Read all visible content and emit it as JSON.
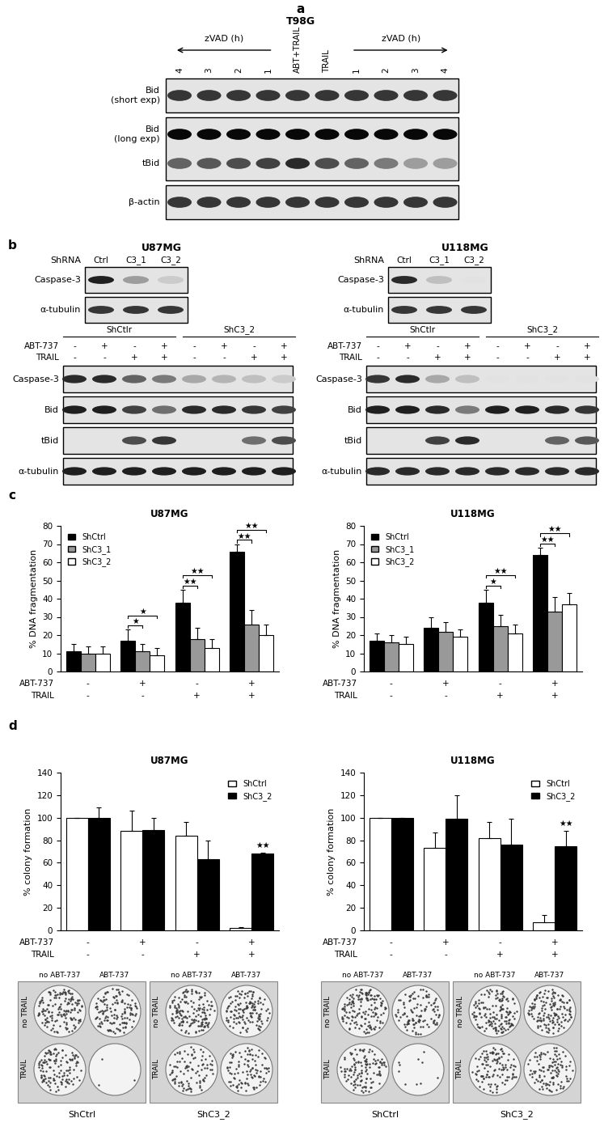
{
  "panel_letters": [
    "a",
    "b",
    "c",
    "d"
  ],
  "blots": {
    "a": {
      "title": "T98G",
      "lanes": [
        "4",
        "3",
        "2",
        "1",
        "ABT+TRAIL",
        "TRAIL",
        "1",
        "2",
        "3",
        "4"
      ],
      "lane_arrows": [
        {
          "label": "zVAD (h)",
          "span": [
            0,
            3
          ],
          "direction": "left"
        },
        {
          "label": "zVAD (h)",
          "span": [
            6,
            9
          ],
          "direction": "right"
        }
      ],
      "boxes": [
        {
          "bands": [
            {
              "label": "Bid\n(short exp)",
              "intensity": [
                0.8,
                0.8,
                0.8,
                0.8,
                0.8,
                0.8,
                0.8,
                0.8,
                0.8,
                0.8
              ]
            }
          ]
        },
        {
          "bands": [
            {
              "label": "Bid\n(long exp)",
              "intensity": [
                1.0,
                1.0,
                1.0,
                1.0,
                1.0,
                1.0,
                1.0,
                1.0,
                1.0,
                1.0
              ]
            },
            {
              "label": "tBid",
              "intensity": [
                0.6,
                0.65,
                0.7,
                0.75,
                0.85,
                0.7,
                0.6,
                0.5,
                0.35,
                0.35
              ]
            }
          ]
        },
        {
          "bands": [
            {
              "label": "β-actin",
              "intensity": [
                0.8,
                0.8,
                0.8,
                0.8,
                0.8,
                0.8,
                0.8,
                0.8,
                0.8,
                0.8
              ]
            }
          ]
        }
      ]
    },
    "b": [
      {
        "title": "U87MG",
        "knockdown": {
          "header": "ShRNA",
          "lanes": [
            "Ctrl",
            "C3_1",
            "C3_2"
          ],
          "boxes": [
            {
              "bands": [
                {
                  "label": "Caspase-3",
                  "intensity": [
                    0.9,
                    0.35,
                    0.15
                  ]
                }
              ]
            },
            {
              "bands": [
                {
                  "label": "α-tubulin",
                  "intensity": [
                    0.8,
                    0.8,
                    0.8
                  ]
                }
              ]
            }
          ]
        },
        "treatment": {
          "groups": [
            {
              "label": "ShCtlr",
              "span": [
                0,
                3
              ]
            },
            {
              "label": "ShC3_2",
              "span": [
                4,
                7
              ]
            }
          ],
          "conditions": [
            {
              "label": "ABT-737",
              "values": [
                "-",
                "+",
                "-",
                "+",
                "-",
                "+",
                "-",
                "+"
              ]
            },
            {
              "label": "TRAIL",
              "values": [
                "-",
                "-",
                "+",
                "+",
                "-",
                "-",
                "+",
                "+"
              ]
            }
          ],
          "boxes": [
            {
              "bands": [
                {
                  "label": "Caspase-3",
                  "intensity": [
                    0.85,
                    0.85,
                    0.6,
                    0.5,
                    0.3,
                    0.25,
                    0.2,
                    0.15
                  ]
                }
              ]
            },
            {
              "bands": [
                {
                  "label": "Bid",
                  "intensity": [
                    0.9,
                    0.9,
                    0.75,
                    0.55,
                    0.85,
                    0.85,
                    0.8,
                    0.75
                  ]
                }
              ]
            },
            {
              "bands": [
                {
                  "label": "tBid",
                  "intensity": [
                    0,
                    0,
                    0.7,
                    0.8,
                    0,
                    0,
                    0.55,
                    0.7
                  ]
                }
              ]
            },
            {
              "bands": [
                {
                  "label": "α-tubulin",
                  "intensity": [
                    0.9,
                    0.9,
                    0.9,
                    0.9,
                    0.9,
                    0.9,
                    0.9,
                    0.9
                  ]
                }
              ]
            }
          ]
        }
      },
      {
        "title": "U118MG",
        "knockdown": {
          "header": "ShRNA",
          "lanes": [
            "Ctrl",
            "C3_1",
            "C3_2"
          ],
          "boxes": [
            {
              "bands": [
                {
                  "label": "Caspase-3",
                  "intensity": [
                    0.85,
                    0.2,
                    0.05
                  ]
                }
              ]
            },
            {
              "bands": [
                {
                  "label": "α-tubulin",
                  "intensity": [
                    0.8,
                    0.8,
                    0.8
                  ]
                }
              ]
            }
          ]
        },
        "treatment": {
          "groups": [
            {
              "label": "ShCtlr",
              "span": [
                0,
                3
              ]
            },
            {
              "label": "ShC3_2",
              "span": [
                4,
                7
              ]
            }
          ],
          "conditions": [
            {
              "label": "ABT-737",
              "values": [
                "-",
                "+",
                "-",
                "+",
                "-",
                "+",
                "-",
                "+"
              ]
            },
            {
              "label": "TRAIL",
              "values": [
                "-",
                "-",
                "+",
                "+",
                "-",
                "-",
                "+",
                "+"
              ]
            }
          ],
          "boxes": [
            {
              "bands": [
                {
                  "label": "Caspase-3",
                  "intensity": [
                    0.8,
                    0.85,
                    0.3,
                    0.2,
                    0.05,
                    0.05,
                    0.05,
                    0.05
                  ]
                }
              ]
            },
            {
              "bands": [
                {
                  "label": "Bid",
                  "intensity": [
                    0.9,
                    0.9,
                    0.85,
                    0.5,
                    0.9,
                    0.9,
                    0.85,
                    0.8
                  ]
                }
              ]
            },
            {
              "bands": [
                {
                  "label": "tBid",
                  "intensity": [
                    0,
                    0,
                    0.75,
                    0.85,
                    0,
                    0,
                    0.6,
                    0.65
                  ]
                }
              ]
            },
            {
              "bands": [
                {
                  "label": "α-tubulin",
                  "intensity": [
                    0.85,
                    0.85,
                    0.85,
                    0.85,
                    0.85,
                    0.85,
                    0.85,
                    0.85
                  ]
                }
              ]
            }
          ]
        }
      }
    ]
  },
  "chart_data": [
    {
      "type": "bar",
      "title": "U87MG",
      "y_label": "% DNA fragmentation",
      "categories": [
        null,
        null,
        null,
        null
      ],
      "conditions": [
        {
          "label": "ABT-737",
          "values": [
            "-",
            "+",
            "-",
            "+"
          ]
        },
        {
          "label": "TRAIL",
          "values": [
            "-",
            "-",
            "+",
            "+"
          ]
        }
      ],
      "series": [
        {
          "name": "ShCtrl",
          "color": "#000000",
          "values": [
            11,
            17,
            38,
            66
          ],
          "errors": [
            4,
            6,
            7,
            4
          ]
        },
        {
          "name": "ShC3_1",
          "color": "#999999",
          "values": [
            10,
            11,
            18,
            26
          ],
          "errors": [
            4,
            4,
            6,
            8
          ]
        },
        {
          "name": "ShC3_2",
          "color": "#ffffff",
          "values": [
            10,
            9,
            13,
            20
          ],
          "errors": [
            4,
            4,
            5,
            6
          ]
        }
      ],
      "ylim": [
        0,
        80
      ],
      "yticks": [
        0,
        10,
        20,
        30,
        40,
        50,
        60,
        70,
        80
      ],
      "legend": "upper left",
      "significance": [
        {
          "category": 1,
          "between": [
            "ShCtrl",
            "ShC3_1"
          ],
          "label": "★"
        },
        {
          "category": 1,
          "between": [
            "ShCtrl",
            "ShC3_2"
          ],
          "label": "★"
        },
        {
          "category": 2,
          "between": [
            "ShCtrl",
            "ShC3_1"
          ],
          "label": "★★"
        },
        {
          "category": 2,
          "between": [
            "ShCtrl",
            "ShC3_2"
          ],
          "label": "★★"
        },
        {
          "category": 3,
          "between": [
            "ShCtrl",
            "ShC3_1"
          ],
          "label": "★★"
        },
        {
          "category": 3,
          "between": [
            "ShCtrl",
            "ShC3_2"
          ],
          "label": "★★"
        }
      ]
    },
    {
      "type": "bar",
      "title": "U118MG",
      "y_label": "% DNA fragmentation",
      "categories": [
        null,
        null,
        null,
        null
      ],
      "conditions": [
        {
          "label": "ABT-737",
          "values": [
            "-",
            "+",
            "-",
            "+"
          ]
        },
        {
          "label": "TRAIL",
          "values": [
            "-",
            "-",
            "+",
            "+"
          ]
        }
      ],
      "series": [
        {
          "name": "ShCtrl",
          "color": "#000000",
          "values": [
            17,
            24,
            38,
            64
          ],
          "errors": [
            4,
            6,
            7,
            4
          ]
        },
        {
          "name": "ShC3_1",
          "color": "#999999",
          "values": [
            16,
            22,
            25,
            33
          ],
          "errors": [
            4,
            5,
            6,
            8
          ]
        },
        {
          "name": "ShC3_2",
          "color": "#ffffff",
          "values": [
            15,
            19,
            21,
            37
          ],
          "errors": [
            4,
            4,
            5,
            6
          ]
        }
      ],
      "ylim": [
        0,
        80
      ],
      "yticks": [
        0,
        10,
        20,
        30,
        40,
        50,
        60,
        70,
        80
      ],
      "legend": "upper left",
      "significance": [
        {
          "category": 2,
          "between": [
            "ShCtrl",
            "ShC3_1"
          ],
          "label": "★"
        },
        {
          "category": 2,
          "between": [
            "ShCtrl",
            "ShC3_2"
          ],
          "label": "★★"
        },
        {
          "category": 3,
          "between": [
            "ShCtrl",
            "ShC3_1"
          ],
          "label": "★★"
        },
        {
          "category": 3,
          "between": [
            "ShCtrl",
            "ShC3_2"
          ],
          "label": "★★"
        }
      ]
    },
    {
      "type": "bar",
      "title": "U87MG",
      "y_label": "% colony formation",
      "categories": [
        null,
        null,
        null,
        null
      ],
      "conditions": [
        {
          "label": "ABT-737",
          "values": [
            "-",
            "+",
            "-",
            "+"
          ]
        },
        {
          "label": "TRAIL",
          "values": [
            "-",
            "-",
            "+",
            "+"
          ]
        }
      ],
      "series": [
        {
          "name": "ShCtrl",
          "color": "#ffffff",
          "values": [
            100,
            88,
            84,
            2
          ],
          "errors": [
            0,
            18,
            12,
            1
          ]
        },
        {
          "name": "ShC3_2",
          "color": "#000000",
          "values": [
            100,
            89,
            63,
            68
          ],
          "errors": [
            9,
            11,
            17,
            1
          ]
        }
      ],
      "ylim": [
        0,
        140
      ],
      "yticks": [
        0,
        20,
        40,
        60,
        80,
        100,
        120,
        140
      ],
      "legend": "upper right",
      "significance": [
        {
          "category": 3,
          "series": "ShC3_2",
          "label": "★★"
        }
      ]
    },
    {
      "type": "bar",
      "title": "U118MG",
      "y_label": "% colony formation",
      "categories": [
        null,
        null,
        null,
        null
      ],
      "conditions": [
        {
          "label": "ABT-737",
          "values": [
            "-",
            "+",
            "-",
            "+"
          ]
        },
        {
          "label": "TRAIL",
          "values": [
            "-",
            "-",
            "+",
            "+"
          ]
        }
      ],
      "series": [
        {
          "name": "ShCtrl",
          "color": "#ffffff",
          "values": [
            100,
            73,
            82,
            7
          ],
          "errors": [
            0,
            14,
            14,
            7
          ]
        },
        {
          "name": "ShC3_2",
          "color": "#000000",
          "values": [
            100,
            99,
            76,
            75
          ],
          "errors": [
            0,
            21,
            23,
            13
          ]
        }
      ],
      "ylim": [
        0,
        140
      ],
      "yticks": [
        0,
        20,
        40,
        60,
        80,
        100,
        120,
        140
      ],
      "legend": "upper right",
      "significance": [
        {
          "category": 3,
          "series": "ShC3_2",
          "label": "★★"
        }
      ]
    }
  ],
  "plates": [
    {
      "columns": [
        "no ABT-737",
        "ABT-737"
      ],
      "rows": [
        "no TRAIL",
        "TRAIL"
      ],
      "groups": [
        "ShCtrl",
        "ShC3_2"
      ]
    },
    {
      "columns": [
        "no ABT-737",
        "ABT-737"
      ],
      "rows": [
        "no TRAIL",
        "TRAIL"
      ],
      "groups": [
        "ShCtrl",
        "ShC3_2"
      ]
    }
  ]
}
